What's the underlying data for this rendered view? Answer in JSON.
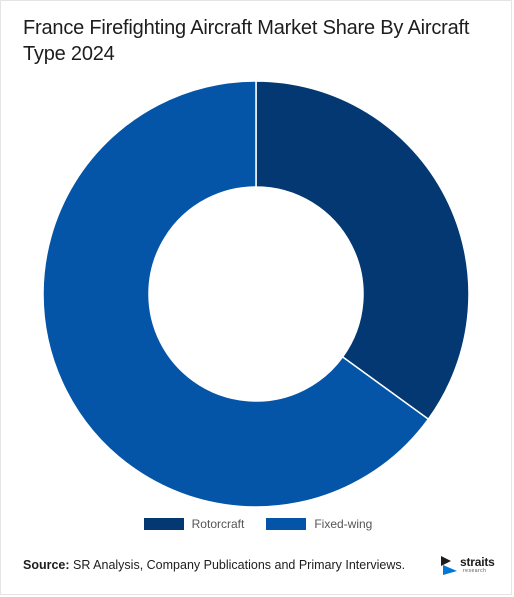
{
  "chart_data": {
    "type": "pie",
    "variant": "donut",
    "title": "France Firefighting Aircraft Market Share By Aircraft Type 2024",
    "categories": [
      "Rotorcraft",
      "Fixed-wing"
    ],
    "values": [
      35,
      65
    ],
    "unit": "%",
    "colors": [
      "#033872",
      "#0455a7"
    ],
    "separator_color": "#ffffff",
    "start_angle": "12 o'clock",
    "direction": "clockwise",
    "legend": "bottom-center"
  },
  "source": {
    "label": "Source:",
    "text": " SR Analysis, Company Publications and Primary Interviews."
  },
  "logo": {
    "word": "straits",
    "sub": "research",
    "icon": "straits-logo-icon",
    "colors": [
      "#1d1d1d",
      "#0477d6"
    ]
  }
}
